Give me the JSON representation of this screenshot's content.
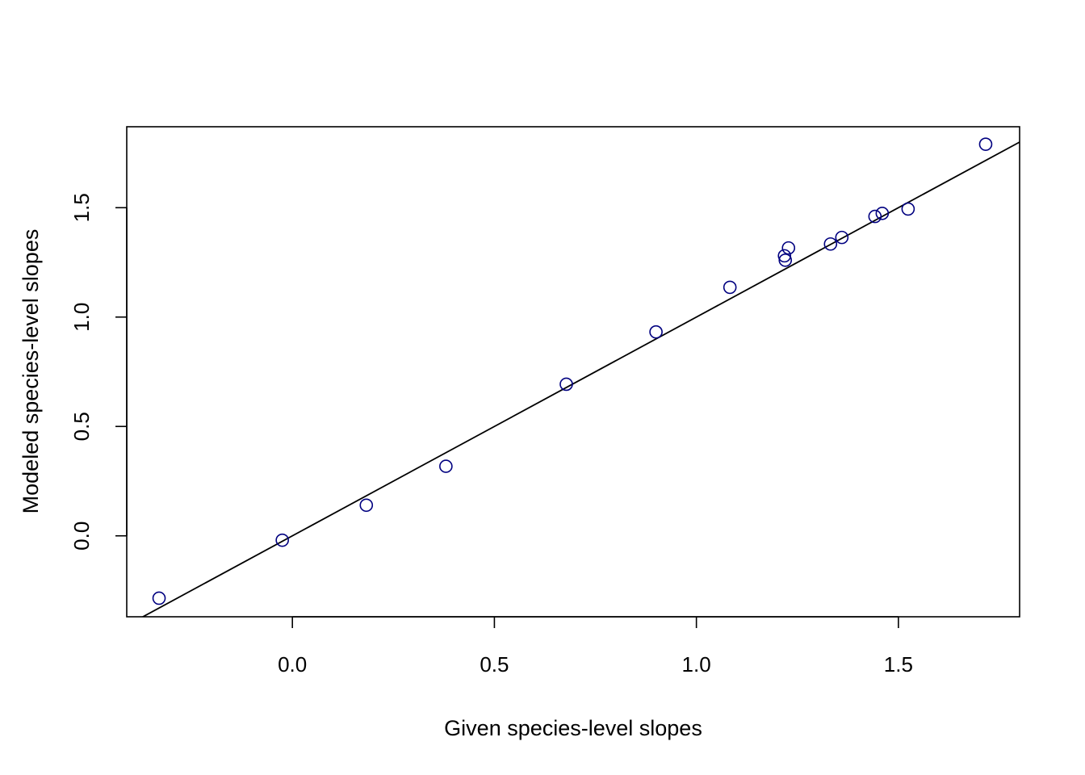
{
  "chart_data": {
    "type": "scatter",
    "title": "",
    "xlabel": "Given species-level slopes",
    "ylabel": "Modeled species-level slopes",
    "xlim": [
      -0.41,
      1.8
    ],
    "ylim": [
      -0.37,
      1.87
    ],
    "x_ticks": [
      0.0,
      0.5,
      1.0,
      1.5
    ],
    "x_tick_labels": [
      "0.0",
      "0.5",
      "1.0",
      "1.5"
    ],
    "y_ticks": [
      0.0,
      0.5,
      1.0,
      1.5
    ],
    "y_tick_labels": [
      "0.0",
      "0.5",
      "1.0",
      "1.5"
    ],
    "grid": false,
    "point_color": "#000080",
    "line_color": "#000000",
    "points": [
      {
        "x": -0.33,
        "y": -0.285
      },
      {
        "x": -0.025,
        "y": -0.02
      },
      {
        "x": 0.183,
        "y": 0.14
      },
      {
        "x": 0.38,
        "y": 0.318
      },
      {
        "x": 0.678,
        "y": 0.693
      },
      {
        "x": 0.9,
        "y": 0.932
      },
      {
        "x": 1.083,
        "y": 1.136
      },
      {
        "x": 1.218,
        "y": 1.28
      },
      {
        "x": 1.22,
        "y": 1.26
      },
      {
        "x": 1.228,
        "y": 1.316
      },
      {
        "x": 1.332,
        "y": 1.334
      },
      {
        "x": 1.36,
        "y": 1.364
      },
      {
        "x": 1.442,
        "y": 1.46
      },
      {
        "x": 1.46,
        "y": 1.474
      },
      {
        "x": 1.524,
        "y": 1.494
      },
      {
        "x": 1.716,
        "y": 1.79
      }
    ],
    "reference_line": {
      "intercept": 0.0,
      "slope": 1.0
    }
  }
}
